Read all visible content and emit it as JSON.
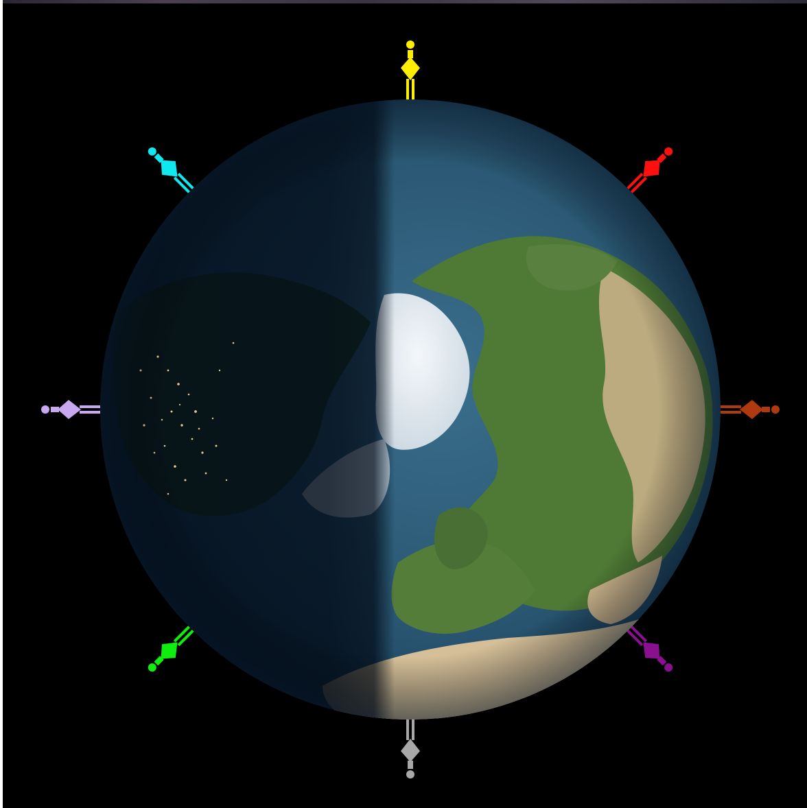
{
  "scene": {
    "subject": "earth-globe-north-pole-view",
    "terminator": "day-night-boundary",
    "colors": {
      "background": "#000000",
      "ocean_day": "#2c5b78",
      "ocean_night": "#06131f",
      "land_green": "#4f7a35",
      "land_desert": "#c9b088",
      "ice": "#e4ebf0",
      "city_lights": "#e7c98a"
    }
  },
  "figures": [
    {
      "name": "figure-top",
      "color": "#ffee00",
      "angle": 0
    },
    {
      "name": "figure-top-right",
      "color": "#ff1010",
      "angle": 45
    },
    {
      "name": "figure-right",
      "color": "#b03a10",
      "angle": 90
    },
    {
      "name": "figure-bottom-right",
      "color": "#8a1090",
      "angle": 135
    },
    {
      "name": "figure-bottom",
      "color": "#a8a8a8",
      "angle": 180
    },
    {
      "name": "figure-bottom-left",
      "color": "#10ee10",
      "angle": 225
    },
    {
      "name": "figure-left",
      "color": "#c8a8f0",
      "angle": 270
    },
    {
      "name": "figure-top-left",
      "color": "#10e8f0",
      "angle": 315
    }
  ]
}
